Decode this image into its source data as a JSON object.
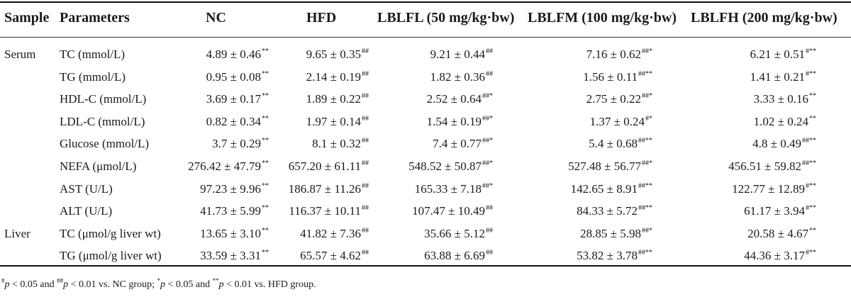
{
  "headers": {
    "sample": "Sample",
    "parameters": "Parameters",
    "nc": "NC",
    "hfd": "HFD",
    "lblfl": "LBLFL (50 mg/kg·bw)",
    "lblfm": "LBLFM (100 mg/kg·bw)",
    "lblfh": "LBLFH (200 mg/kg·bw)"
  },
  "rows": [
    {
      "sample": "Serum",
      "param": "TC (mmol/L)",
      "nc": "4.89 ± 0.46",
      "nc_sup": "**",
      "hfd": "9.65 ± 0.35",
      "hfd_sup": "##",
      "l": "9.21 ± 0.44",
      "l_sup": "##",
      "m": "7.16 ± 0.62",
      "m_sup": "##*",
      "h": "6.21 ± 0.51",
      "h_sup": "#**"
    },
    {
      "sample": "",
      "param": "TG (mmol/L)",
      "nc": "0.95 ± 0.08",
      "nc_sup": "**",
      "hfd": "2.14 ± 0.19",
      "hfd_sup": "##",
      "l": "1.82 ± 0.36",
      "l_sup": "##",
      "m": "1.56 ± 0.11",
      "m_sup": "##**",
      "h": "1.41 ± 0.21",
      "h_sup": "#**"
    },
    {
      "sample": "",
      "param": "HDL-C (mmol/L)",
      "nc": "3.69 ± 0.17",
      "nc_sup": "**",
      "hfd": "1.89 ± 0.22",
      "hfd_sup": "##",
      "l": "2.52 ± 0.64",
      "l_sup": "##*",
      "m": "2.75 ± 0.22",
      "m_sup": "##*",
      "h": "3.33 ± 0.16",
      "h_sup": "**"
    },
    {
      "sample": "",
      "param": "LDL-C (mmol/L)",
      "nc": "0.82 ± 0.34",
      "nc_sup": "**",
      "hfd": "1.97 ± 0.14",
      "hfd_sup": "##",
      "l": "1.54 ± 0.19",
      "l_sup": "##*",
      "m": "1.37 ± 0.24",
      "m_sup": "#*",
      "h": "1.02 ± 0.24",
      "h_sup": "**"
    },
    {
      "sample": "",
      "param": "Glucose (mmol/L)",
      "nc": "3.7 ± 0.29",
      "nc_sup": "**",
      "hfd": "8.1 ± 0.32",
      "hfd_sup": "##",
      "l": "7.4 ± 0.77",
      "l_sup": "##*",
      "m": "5.4 ± 0.68",
      "m_sup": "##**",
      "h": "4.8 ± 0.49",
      "h_sup": "##**"
    },
    {
      "sample": "",
      "param": "NEFA (μmol/L)",
      "nc": "276.42 ± 47.79",
      "nc_sup": "**",
      "hfd": "657.20 ± 61.11",
      "hfd_sup": "##",
      "l": "548.52 ± 50.87",
      "l_sup": "##*",
      "m": "527.48 ± 56.77",
      "m_sup": "##*",
      "h": "456.51 ± 59.82",
      "h_sup": "##**"
    },
    {
      "sample": "",
      "param": "AST (U/L)",
      "nc": "97.23 ± 9.96",
      "nc_sup": "**",
      "hfd": "186.87 ± 11.26",
      "hfd_sup": "##",
      "l": "165.33 ± 7.18",
      "l_sup": "##*",
      "m": "142.65 ± 8.91",
      "m_sup": "##**",
      "h": "122.77 ± 12.89",
      "h_sup": "#**"
    },
    {
      "sample": "",
      "param": "ALT (U/L)",
      "nc": "41.73 ± 5.99",
      "nc_sup": "**",
      "hfd": "116.37 ± 10.11",
      "hfd_sup": "##",
      "l": "107.47 ± 10.49",
      "l_sup": "##",
      "m": "84.33 ± 5.72",
      "m_sup": "##**",
      "h": "61.17 ± 3.94",
      "h_sup": "#**"
    },
    {
      "sample": "Liver",
      "param": "TC (μmol/g liver wt)",
      "nc": "13.65 ± 3.10",
      "nc_sup": "**",
      "hfd": "41.82 ± 7.36",
      "hfd_sup": "##",
      "l": "35.66 ± 5.12",
      "l_sup": "##",
      "m": "28.85 ± 5.98",
      "m_sup": "##*",
      "h": "20.58 ± 4.67",
      "h_sup": "**"
    },
    {
      "sample": "",
      "param": "TG (μmol/g liver wt)",
      "nc": "33.59 ± 3.31",
      "nc_sup": "**",
      "hfd": "65.57 ± 4.62",
      "hfd_sup": "##",
      "l": "63.88 ± 6.69",
      "l_sup": "##",
      "m": "53.82 ± 3.78",
      "m_sup": "##**",
      "h": "44.36 ± 3.17",
      "h_sup": "#**"
    }
  ],
  "footnote": {
    "s1": "#",
    "p1": "p",
    "t1": " < 0.05 and ",
    "s2": "##",
    "p2": "p",
    "t2": " < 0.01 vs. NC group; ",
    "s3": "*",
    "p3": "p",
    "t3": " < 0.05 and ",
    "s4": "**",
    "p4": "p",
    "t4": " < 0.01 vs. HFD group."
  }
}
